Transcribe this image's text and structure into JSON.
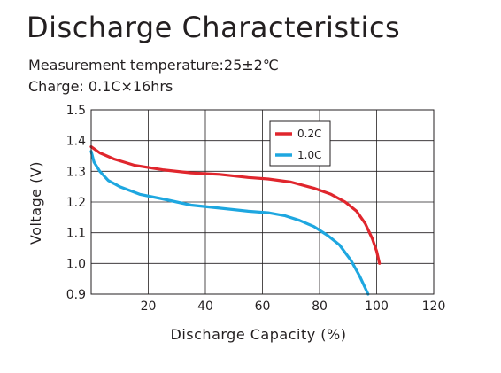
{
  "header": {
    "title": "Discharge Characteristics",
    "line1": "Measurement temperature:25±2℃",
    "line2": "Charge: 0.1C×16hrs"
  },
  "chart_data": {
    "type": "line",
    "xlabel": "Discharge Capacity (%)",
    "ylabel": "Voltage (V)",
    "xlim": [
      0,
      120
    ],
    "ylim": [
      0.9,
      1.5
    ],
    "xticks": [
      20,
      40,
      60,
      80,
      100,
      120
    ],
    "yticks": [
      0.9,
      1.0,
      1.1,
      1.2,
      1.3,
      1.4,
      1.5
    ],
    "xtick_labels": [
      "20",
      "40",
      "60",
      "80",
      "100",
      "120"
    ],
    "ytick_labels": [
      "0.9",
      "1.0",
      "1.1",
      "1.2",
      "1.3",
      "1.4",
      "1.5"
    ],
    "grid": true,
    "legend_position": "top-right",
    "series": [
      {
        "name": "0.2C",
        "color": "#e0262d",
        "points": [
          [
            0,
            1.38
          ],
          [
            3,
            1.36
          ],
          [
            8,
            1.34
          ],
          [
            15,
            1.32
          ],
          [
            25,
            1.305
          ],
          [
            35,
            1.295
          ],
          [
            45,
            1.29
          ],
          [
            55,
            1.28
          ],
          [
            62,
            1.275
          ],
          [
            70,
            1.265
          ],
          [
            78,
            1.245
          ],
          [
            84,
            1.225
          ],
          [
            89,
            1.2
          ],
          [
            93,
            1.17
          ],
          [
            96,
            1.13
          ],
          [
            98.5,
            1.08
          ],
          [
            100,
            1.04
          ],
          [
            101,
            1.0
          ]
        ]
      },
      {
        "name": "1.0C",
        "color": "#1ea7e0",
        "points": [
          [
            0,
            1.365
          ],
          [
            1,
            1.33
          ],
          [
            3,
            1.3
          ],
          [
            6,
            1.27
          ],
          [
            10,
            1.25
          ],
          [
            17,
            1.225
          ],
          [
            25,
            1.21
          ],
          [
            35,
            1.19
          ],
          [
            45,
            1.18
          ],
          [
            55,
            1.17
          ],
          [
            62,
            1.165
          ],
          [
            68,
            1.155
          ],
          [
            73,
            1.14
          ],
          [
            78,
            1.12
          ],
          [
            83,
            1.09
          ],
          [
            87,
            1.06
          ],
          [
            91,
            1.01
          ],
          [
            94,
            0.96
          ],
          [
            96,
            0.92
          ],
          [
            97,
            0.9
          ]
        ]
      }
    ]
  }
}
